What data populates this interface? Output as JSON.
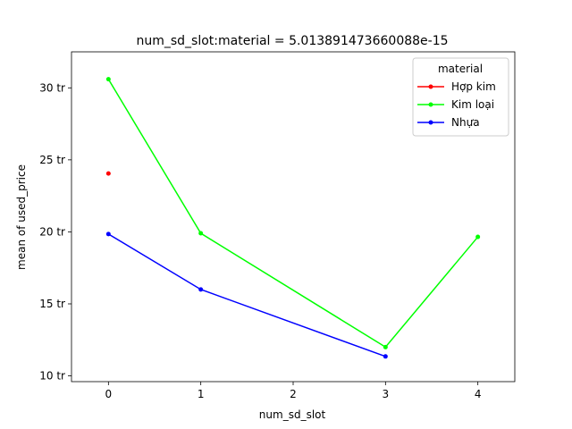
{
  "chart_data": {
    "type": "line",
    "title": "num_sd_slot:material = 5.013891473660088e-15",
    "xlabel": "num_sd_slot",
    "ylabel": "mean of used_price",
    "x_ticks": [
      0,
      1,
      2,
      3,
      4
    ],
    "x_tick_labels": [
      "0",
      "1",
      "2",
      "3",
      "4"
    ],
    "y_ticks": [
      10,
      15,
      20,
      25,
      30
    ],
    "y_tick_labels": [
      "10 tr",
      "15 tr",
      "20 tr",
      "25 tr",
      "30 tr"
    ],
    "xlim": [
      -0.4,
      4.4
    ],
    "ylim": [
      9.6,
      32.5
    ],
    "legend": {
      "title": "material",
      "position": "top-right"
    },
    "series": [
      {
        "name": "Hợp kim",
        "color": "#ff0000",
        "x": [
          0
        ],
        "y": [
          24.05
        ]
      },
      {
        "name": "Kim loại",
        "color": "#00ff00",
        "x": [
          0,
          1,
          3,
          4
        ],
        "y": [
          30.6,
          19.9,
          12.0,
          19.65
        ]
      },
      {
        "name": "Nhựa",
        "color": "#0000ff",
        "x": [
          0,
          1,
          3
        ],
        "y": [
          19.85,
          16.0,
          11.35
        ]
      }
    ]
  }
}
